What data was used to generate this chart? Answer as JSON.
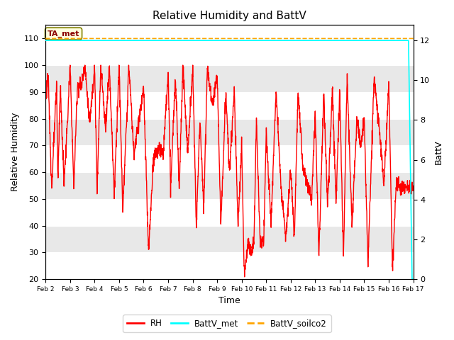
{
  "title": "Relative Humidity and BattV",
  "ylabel_left": "Relative Humidity",
  "ylabel_right": "BattV",
  "xlabel": "Time",
  "ylim_left": [
    20,
    115
  ],
  "ylim_right": [
    0,
    12.778
  ],
  "yticks_left": [
    20,
    30,
    40,
    50,
    60,
    70,
    80,
    90,
    100,
    110
  ],
  "yticks_right": [
    0,
    2,
    4,
    6,
    8,
    10,
    12
  ],
  "xtick_labels": [
    "Feb 2",
    "Feb 3",
    "Feb 4",
    "Feb 5",
    "Feb 6",
    "Feb 7",
    "Feb 8",
    "Feb 9",
    "Feb 10",
    "Feb 11",
    "Feb 12",
    "Feb 13",
    "Feb 14",
    "Feb 15",
    "Feb 16",
    "Feb 17"
  ],
  "annotation_text": "TA_met",
  "bg_color": "#ffffff",
  "plot_bg_color": "#ffffff",
  "rh_color": "#ff0000",
  "battv_met_color": "#00ffff",
  "battv_soilco2_color": "#ffa500",
  "legend_rh_label": "RH",
  "legend_battv_met_label": "BattV_met",
  "legend_battv_soilco2_label": "BattV_soilco2",
  "grid_colors": [
    "#e8e8e8",
    "#d0d0d0"
  ],
  "title_fontsize": 11,
  "label_fontsize": 9,
  "tick_fontsize": 8
}
